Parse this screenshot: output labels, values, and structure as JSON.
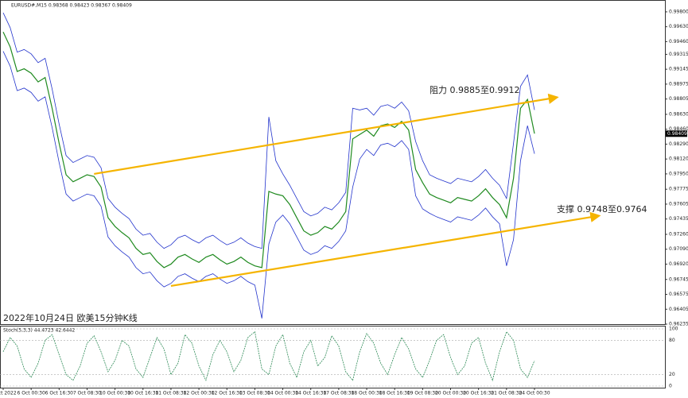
{
  "chart_data": {
    "type": "line",
    "info": "EURUSD#,M15  0.98368 0.98423 0.98367 0.98409",
    "caption": "2022年10月24日 欧美15分钟K线",
    "annotations": [
      "阻力 0.9885至0.9912",
      "支撑 0.9748至0.9764"
    ],
    "last_price": {
      "value": 0.98409,
      "label": "0.98409"
    },
    "x": [
      "5 Oct 2022",
      null,
      null,
      null,
      "6 Oct 00:30",
      null,
      null,
      null,
      "6 Oct 16:30",
      null,
      null,
      null,
      "7 Oct 08:30",
      null,
      null,
      null,
      "10 Oct 00:30",
      null,
      null,
      null,
      "10 Oct 16:30",
      null,
      null,
      null,
      "11 Oct 08:30",
      null,
      null,
      null,
      "12 Oct 00:30",
      null,
      null,
      null,
      "12 Oct 16:30",
      null,
      null,
      null,
      "13 Oct 08:30",
      null,
      null,
      null,
      "14 Oct 00:30",
      null,
      null,
      null,
      "14 Oct 16:30",
      null,
      null,
      null,
      "17 Oct 08:30",
      null,
      null,
      null,
      "18 Oct 00:30",
      null,
      null,
      null,
      "18 Oct 16:30",
      null,
      null,
      null,
      "19 Oct 08:30",
      null,
      null,
      null,
      "20 Oct 00:30",
      null,
      null,
      null,
      "20 Oct 16:30",
      null,
      null,
      null,
      "21 Oct 08:30",
      null,
      null,
      null,
      "24 Oct 00:30"
    ],
    "series": [
      {
        "name": "Close",
        "color": "#1f8a1f",
        "values": [
          0.9957,
          0.994,
          0.9912,
          0.9915,
          0.991,
          0.99,
          0.9905,
          0.987,
          0.983,
          0.9794,
          0.9786,
          0.979,
          0.9794,
          0.9792,
          0.978,
          0.9745,
          0.9735,
          0.9728,
          0.9722,
          0.971,
          0.9703,
          0.9705,
          0.9695,
          0.9688,
          0.9692,
          0.97,
          0.9703,
          0.9698,
          0.9694,
          0.97,
          0.9703,
          0.9697,
          0.9692,
          0.9695,
          0.97,
          0.9694,
          0.969,
          0.9688,
          0.9775,
          0.9772,
          0.977,
          0.976,
          0.9745,
          0.973,
          0.9725,
          0.9728,
          0.9735,
          0.9732,
          0.974,
          0.9752,
          0.9835,
          0.984,
          0.9845,
          0.9838,
          0.985,
          0.9852,
          0.9848,
          0.9855,
          0.9845,
          0.98,
          0.9785,
          0.9772,
          0.9768,
          0.9765,
          0.9762,
          0.9768,
          0.9766,
          0.9764,
          0.977,
          0.9778,
          0.9768,
          0.976,
          0.9745,
          0.979,
          0.987,
          0.988,
          0.9841
        ]
      },
      {
        "name": "Upper",
        "color": "#2233cc",
        "values": [
          0.9979,
          0.9962,
          0.9934,
          0.9937,
          0.9932,
          0.9922,
          0.9927,
          0.9892,
          0.9852,
          0.9816,
          0.9808,
          0.9812,
          0.9816,
          0.9814,
          0.9802,
          0.9767,
          0.9757,
          0.975,
          0.9744,
          0.9732,
          0.9725,
          0.9727,
          0.9717,
          0.971,
          0.9714,
          0.9722,
          0.9725,
          0.972,
          0.9716,
          0.9722,
          0.9725,
          0.9719,
          0.9714,
          0.9717,
          0.9722,
          0.9716,
          0.9712,
          0.971,
          0.986,
          0.981,
          0.9795,
          0.9782,
          0.9767,
          0.9752,
          0.9747,
          0.975,
          0.9757,
          0.9754,
          0.9762,
          0.9774,
          0.987,
          0.9868,
          0.987,
          0.9862,
          0.9872,
          0.9874,
          0.987,
          0.9877,
          0.9867,
          0.9832,
          0.981,
          0.9794,
          0.979,
          0.9787,
          0.9784,
          0.979,
          0.9788,
          0.9786,
          0.9792,
          0.98,
          0.979,
          0.9782,
          0.9767,
          0.983,
          0.9895,
          0.9908,
          0.9868
        ]
      },
      {
        "name": "Lower",
        "color": "#2233cc",
        "values": [
          0.9935,
          0.9918,
          0.989,
          0.9893,
          0.9888,
          0.9878,
          0.9883,
          0.9848,
          0.9808,
          0.9772,
          0.9764,
          0.9768,
          0.9772,
          0.977,
          0.9758,
          0.9723,
          0.9713,
          0.9706,
          0.97,
          0.9688,
          0.9681,
          0.9683,
          0.9673,
          0.9666,
          0.967,
          0.9678,
          0.9681,
          0.9676,
          0.9672,
          0.9678,
          0.9681,
          0.9675,
          0.967,
          0.9673,
          0.9678,
          0.9672,
          0.9668,
          0.963,
          0.9715,
          0.974,
          0.9748,
          0.9738,
          0.9723,
          0.9708,
          0.9703,
          0.9706,
          0.9713,
          0.971,
          0.9718,
          0.973,
          0.978,
          0.9812,
          0.9823,
          0.9816,
          0.9828,
          0.983,
          0.9826,
          0.9833,
          0.9823,
          0.977,
          0.9755,
          0.975,
          0.9746,
          0.9743,
          0.974,
          0.9746,
          0.9744,
          0.9742,
          0.9748,
          0.9756,
          0.9746,
          0.9738,
          0.969,
          0.972,
          0.981,
          0.985,
          0.9818
        ]
      }
    ],
    "channels": [
      {
        "color": "#f5b400",
        "x": [
          13,
          79
        ],
        "values": [
          0.9795,
          0.98821
        ]
      },
      {
        "color": "#f5b400",
        "x": [
          24,
          85
        ],
        "values": [
          0.96671,
          0.97469
        ]
      }
    ],
    "ylim": [
      0.96235,
      0.9989
    ],
    "yticks": [
      {
        "value": 0.998,
        "label": "0.99800"
      },
      {
        "value": 0.9963,
        "label": "0.99630"
      },
      {
        "value": 0.9946,
        "label": "0.99460"
      },
      {
        "value": 0.99315,
        "label": "0.99315"
      },
      {
        "value": 0.99145,
        "label": "0.99145"
      },
      {
        "value": 0.98975,
        "label": "0.98975"
      },
      {
        "value": 0.98805,
        "label": "0.98805"
      },
      {
        "value": 0.9863,
        "label": "0.98630"
      },
      {
        "value": 0.9846,
        "label": "0.98460"
      },
      {
        "value": 0.9829,
        "label": "0.98290"
      },
      {
        "value": 0.9812,
        "label": "0.98120"
      },
      {
        "value": 0.9795,
        "label": "0.97950"
      },
      {
        "value": 0.97775,
        "label": "0.97775"
      },
      {
        "value": 0.97605,
        "label": "0.97605"
      },
      {
        "value": 0.97435,
        "label": "0.97435"
      },
      {
        "value": 0.9726,
        "label": "0.97260"
      },
      {
        "value": 0.9709,
        "label": "0.97090"
      },
      {
        "value": 0.9692,
        "label": "0.96920"
      },
      {
        "value": 0.96745,
        "label": "0.96745"
      },
      {
        "value": 0.96575,
        "label": "0.96575"
      },
      {
        "value": 0.96405,
        "label": "0.96405"
      },
      {
        "value": 0.96235,
        "label": "0.96235"
      }
    ],
    "stoch": {
      "title": "Stoch(5,3,3) 44.4723 42.6442",
      "color": "#2e8b57",
      "values": [
        60,
        85,
        70,
        30,
        15,
        40,
        80,
        90,
        55,
        20,
        10,
        35,
        75,
        88,
        60,
        25,
        45,
        80,
        70,
        30,
        15,
        50,
        85,
        65,
        20,
        40,
        90,
        75,
        35,
        10,
        55,
        80,
        60,
        25,
        45,
        85,
        95,
        30,
        20,
        70,
        90,
        40,
        15,
        60,
        80,
        35,
        50,
        88,
        70,
        25,
        10,
        60,
        92,
        75,
        40,
        20,
        55,
        85,
        65,
        30,
        15,
        45,
        80,
        90,
        50,
        20,
        35,
        75,
        85,
        40,
        10,
        60,
        95,
        80,
        30,
        15,
        44.4723
      ],
      "ylim": [
        0,
        100
      ],
      "yticks": [
        0,
        20,
        80,
        100
      ]
    }
  }
}
